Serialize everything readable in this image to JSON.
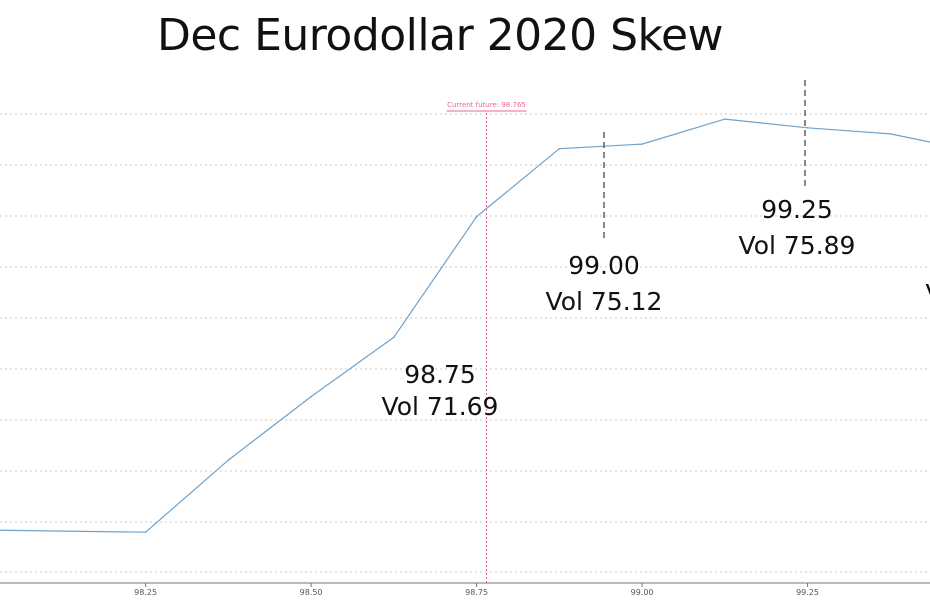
{
  "chart_data": {
    "type": "line",
    "title": "Dec Eurodollar 2020 Skew",
    "xlabel": "",
    "ylabel": "",
    "x_ticks": [
      "98.25",
      "98.50",
      "98.75",
      "99.00",
      "99.25"
    ],
    "xlim": [
      98.03,
      99.435
    ],
    "ylim": [
      54.4,
      77.2
    ],
    "grid": true,
    "series": [
      {
        "color": "#6fa2cc",
        "x": [
          98.0,
          98.25,
          98.375,
          98.5,
          98.625,
          98.75,
          98.875,
          99.0,
          99.125,
          99.25,
          99.375,
          99.5
        ],
        "y": [
          56.9,
          56.8,
          60.2,
          63.2,
          66.0,
          71.69,
          74.9,
          75.12,
          76.3,
          75.89,
          75.6,
          74.8
        ]
      }
    ],
    "current_future": {
      "label": "Current future: 98.765",
      "value": 98.765,
      "color": "#e86a8e"
    },
    "annotations": [
      {
        "strike": "98.75",
        "vol": "Vol 71.69"
      },
      {
        "strike": "99.00",
        "vol": "Vol 75.12"
      },
      {
        "strike": "99.25",
        "vol": "Vol 75.89"
      },
      {
        "strike": "",
        "vol": "V"
      }
    ]
  }
}
